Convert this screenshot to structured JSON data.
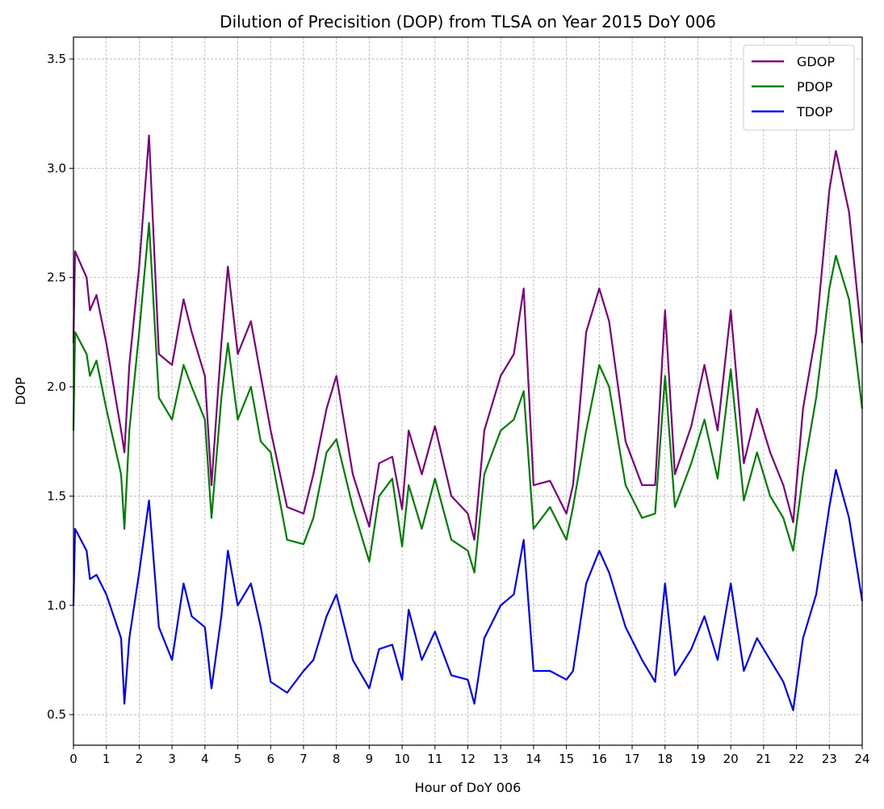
{
  "chart_data": {
    "type": "line",
    "title": "Dilution of Precisition (DOP) from TLSA on Year 2015 DoY 006",
    "xlabel": "Hour of DoY 006",
    "ylabel": "DOP",
    "xlim": [
      0,
      24
    ],
    "ylim": [
      0.36,
      3.6
    ],
    "xticks": [
      0,
      1,
      2,
      3,
      4,
      5,
      6,
      7,
      8,
      9,
      10,
      11,
      12,
      13,
      14,
      15,
      16,
      17,
      18,
      19,
      20,
      21,
      22,
      23,
      24
    ],
    "yticks": [
      0.5,
      1.0,
      1.5,
      2.0,
      2.5,
      3.0,
      3.5
    ],
    "ytick_labels": [
      "0.5",
      "1.0",
      "1.5",
      "2.0",
      "2.5",
      "3.0",
      "3.5"
    ],
    "grid": true,
    "legend_position": "top-right",
    "x": [
      0,
      0.05,
      0.4,
      0.5,
      0.7,
      1.0,
      1.45,
      1.55,
      1.7,
      2.0,
      2.3,
      2.6,
      3.0,
      3.35,
      3.6,
      4.0,
      4.2,
      4.5,
      4.7,
      5.0,
      5.4,
      5.7,
      6.0,
      6.5,
      7.0,
      7.3,
      7.7,
      8.0,
      8.5,
      9.0,
      9.3,
      9.7,
      10.0,
      10.2,
      10.6,
      11.0,
      11.5,
      12.0,
      12.2,
      12.5,
      13.0,
      13.4,
      13.7,
      14.0,
      14.5,
      15.0,
      15.2,
      15.6,
      16.0,
      16.3,
      16.8,
      17.3,
      17.7,
      18.0,
      18.3,
      18.8,
      19.2,
      19.6,
      20.0,
      20.4,
      20.8,
      21.2,
      21.6,
      21.9,
      22.2,
      22.6,
      23.0,
      23.2,
      23.6,
      24.0
    ],
    "series": [
      {
        "name": "GDOP",
        "color": "#800080",
        "values": [
          2.2,
          2.62,
          2.5,
          2.35,
          2.42,
          2.2,
          1.8,
          1.7,
          2.1,
          2.55,
          3.15,
          2.15,
          2.1,
          2.4,
          2.25,
          2.05,
          1.55,
          2.2,
          2.55,
          2.15,
          2.3,
          2.05,
          1.8,
          1.45,
          1.42,
          1.6,
          1.9,
          2.05,
          1.6,
          1.36,
          1.65,
          1.68,
          1.44,
          1.8,
          1.6,
          1.82,
          1.5,
          1.42,
          1.3,
          1.8,
          2.05,
          2.15,
          2.45,
          1.55,
          1.57,
          1.42,
          1.55,
          2.25,
          2.45,
          2.3,
          1.75,
          1.55,
          1.55,
          2.35,
          1.6,
          1.82,
          2.1,
          1.8,
          2.35,
          1.65,
          1.9,
          1.7,
          1.55,
          1.38,
          1.9,
          2.25,
          2.9,
          3.08,
          2.8,
          2.2
        ]
      },
      {
        "name": "PDOP",
        "color": "#008000",
        "values": [
          1.8,
          2.25,
          2.15,
          2.05,
          2.12,
          1.9,
          1.6,
          1.35,
          1.8,
          2.25,
          2.75,
          1.95,
          1.85,
          2.1,
          2.0,
          1.85,
          1.4,
          1.95,
          2.2,
          1.85,
          2.0,
          1.75,
          1.7,
          1.3,
          1.28,
          1.4,
          1.7,
          1.76,
          1.45,
          1.2,
          1.5,
          1.58,
          1.27,
          1.55,
          1.35,
          1.58,
          1.3,
          1.25,
          1.15,
          1.6,
          1.8,
          1.85,
          1.98,
          1.35,
          1.45,
          1.3,
          1.45,
          1.8,
          2.1,
          2.0,
          1.55,
          1.4,
          1.42,
          2.05,
          1.45,
          1.65,
          1.85,
          1.58,
          2.08,
          1.48,
          1.7,
          1.5,
          1.4,
          1.25,
          1.6,
          1.95,
          2.45,
          2.6,
          2.4,
          1.9
        ]
      },
      {
        "name": "TDOP",
        "color": "#0000ff",
        "values": [
          1.0,
          1.35,
          1.25,
          1.12,
          1.14,
          1.05,
          0.85,
          0.55,
          0.85,
          1.15,
          1.48,
          0.9,
          0.75,
          1.1,
          0.95,
          0.9,
          0.62,
          0.95,
          1.25,
          1.0,
          1.1,
          0.9,
          0.65,
          0.6,
          0.7,
          0.75,
          0.95,
          1.05,
          0.75,
          0.62,
          0.8,
          0.82,
          0.66,
          0.98,
          0.75,
          0.88,
          0.68,
          0.66,
          0.55,
          0.85,
          1.0,
          1.05,
          1.3,
          0.7,
          0.7,
          0.66,
          0.7,
          1.1,
          1.25,
          1.15,
          0.9,
          0.75,
          0.65,
          1.1,
          0.68,
          0.8,
          0.95,
          0.75,
          1.1,
          0.7,
          0.85,
          0.75,
          0.65,
          0.52,
          0.85,
          1.05,
          1.45,
          1.62,
          1.4,
          1.02
        ]
      }
    ]
  }
}
